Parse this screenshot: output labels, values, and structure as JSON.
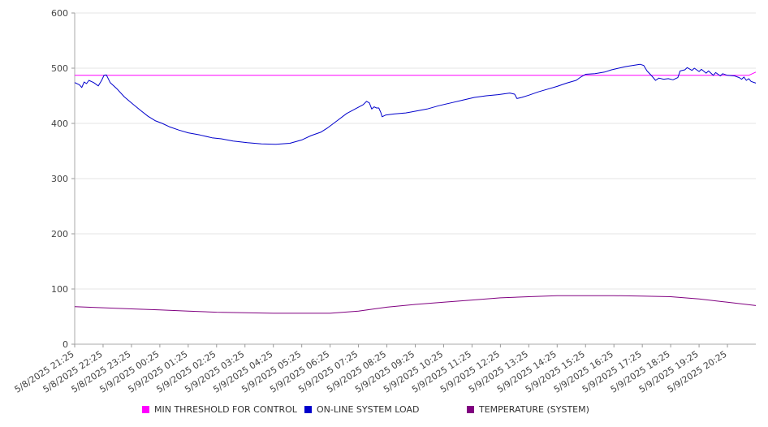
{
  "chart_data": {
    "type": "line",
    "ylim": [
      0,
      600
    ],
    "yticks": [
      0,
      100,
      200,
      300,
      400,
      500,
      600
    ],
    "grid": true,
    "legend_position": "bottom",
    "x_tick_labels": [
      "5/8/2025 21:25",
      "5/8/2025 22:25",
      "5/8/2025 23:25",
      "5/9/2025 00:25",
      "5/9/2025 01:25",
      "5/9/2025 02:25",
      "5/9/2025 03:25",
      "5/9/2025 04:25",
      "5/9/2025 05:25",
      "5/9/2025 06:25",
      "5/9/2025 07:25",
      "5/9/2025 08:25",
      "5/9/2025 09:25",
      "5/9/2025 10:25",
      "5/9/2025 11:25",
      "5/9/2025 12:25",
      "5/9/2025 13:25",
      "5/9/2025 14:25",
      "5/9/2025 15:25",
      "5/9/2025 16:25",
      "5/9/2025 17:25",
      "5/9/2025 18:25",
      "5/9/2025 19:25",
      "5/9/2025 20:25"
    ],
    "series": [
      {
        "name": "MIN THRESHOLD FOR CONTROL",
        "color": "#ff00ff",
        "points": [
          [
            "5/8/2025 21:25",
            487
          ],
          [
            "5/9/2025 21:10",
            487
          ],
          [
            "5/9/2025 21:25",
            493
          ]
        ]
      },
      {
        "name": "ON-LINE SYSTEM LOAD",
        "color": "#0000cc",
        "points": [
          [
            "5/8/2025 21:25",
            474
          ],
          [
            "5/8/2025 21:35",
            470
          ],
          [
            "5/8/2025 21:40",
            465
          ],
          [
            "5/8/2025 21:45",
            475
          ],
          [
            "5/8/2025 21:50",
            472
          ],
          [
            "5/8/2025 21:55",
            478
          ],
          [
            "5/8/2025 22:05",
            474
          ],
          [
            "5/8/2025 22:15",
            468
          ],
          [
            "5/8/2025 22:22",
            478
          ],
          [
            "5/8/2025 22:27",
            487
          ],
          [
            "5/8/2025 22:32",
            488
          ],
          [
            "5/8/2025 22:40",
            474
          ],
          [
            "5/8/2025 22:55",
            462
          ],
          [
            "5/8/2025 23:10",
            448
          ],
          [
            "5/8/2025 23:25",
            437
          ],
          [
            "5/8/2025 23:45",
            423
          ],
          [
            "5/9/2025 00:00",
            413
          ],
          [
            "5/9/2025 00:15",
            405
          ],
          [
            "5/9/2025 00:30",
            400
          ],
          [
            "5/9/2025 00:45",
            394
          ],
          [
            "5/9/2025 01:05",
            388
          ],
          [
            "5/9/2025 01:25",
            383
          ],
          [
            "5/9/2025 01:50",
            379
          ],
          [
            "5/9/2025 02:15",
            374
          ],
          [
            "5/9/2025 02:35",
            372
          ],
          [
            "5/9/2025 03:00",
            368
          ],
          [
            "5/9/2025 03:30",
            365
          ],
          [
            "5/9/2025 04:00",
            363
          ],
          [
            "5/9/2025 04:30",
            362
          ],
          [
            "5/9/2025 05:00",
            364
          ],
          [
            "5/9/2025 05:25",
            370
          ],
          [
            "5/9/2025 05:45",
            378
          ],
          [
            "5/9/2025 06:05",
            384
          ],
          [
            "5/9/2025 06:20",
            392
          ],
          [
            "5/9/2025 06:40",
            405
          ],
          [
            "5/9/2025 07:00",
            418
          ],
          [
            "5/9/2025 07:20",
            427
          ],
          [
            "5/9/2025 07:35",
            434
          ],
          [
            "5/9/2025 07:42",
            440
          ],
          [
            "5/9/2025 07:48",
            437
          ],
          [
            "5/9/2025 07:53",
            426
          ],
          [
            "5/9/2025 07:58",
            430
          ],
          [
            "5/9/2025 08:03",
            428
          ],
          [
            "5/9/2025 08:08",
            428
          ],
          [
            "5/9/2025 08:12",
            420
          ],
          [
            "5/9/2025 08:15",
            412
          ],
          [
            "5/9/2025 08:22",
            415
          ],
          [
            "5/9/2025 08:40",
            417
          ],
          [
            "5/9/2025 09:05",
            419
          ],
          [
            "5/9/2025 09:25",
            422
          ],
          [
            "5/9/2025 09:50",
            426
          ],
          [
            "5/9/2025 10:15",
            432
          ],
          [
            "5/9/2025 10:40",
            437
          ],
          [
            "5/9/2025 11:05",
            442
          ],
          [
            "5/9/2025 11:30",
            447
          ],
          [
            "5/9/2025 11:55",
            450
          ],
          [
            "5/9/2025 12:20",
            452
          ],
          [
            "5/9/2025 12:45",
            455
          ],
          [
            "5/9/2025 12:55",
            453
          ],
          [
            "5/9/2025 13:00",
            445
          ],
          [
            "5/9/2025 13:10",
            447
          ],
          [
            "5/9/2025 13:25",
            451
          ],
          [
            "5/9/2025 13:45",
            457
          ],
          [
            "5/9/2025 14:05",
            462
          ],
          [
            "5/9/2025 14:25",
            467
          ],
          [
            "5/9/2025 14:45",
            473
          ],
          [
            "5/9/2025 15:05",
            478
          ],
          [
            "5/9/2025 15:15",
            484
          ],
          [
            "5/9/2025 15:25",
            489
          ],
          [
            "5/9/2025 15:45",
            490
          ],
          [
            "5/9/2025 16:05",
            493
          ],
          [
            "5/9/2025 16:20",
            497
          ],
          [
            "5/9/2025 16:35",
            500
          ],
          [
            "5/9/2025 16:50",
            503
          ],
          [
            "5/9/2025 17:05",
            505
          ],
          [
            "5/9/2025 17:20",
            507
          ],
          [
            "5/9/2025 17:28",
            505
          ],
          [
            "5/9/2025 17:35",
            495
          ],
          [
            "5/9/2025 17:45",
            486
          ],
          [
            "5/9/2025 17:53",
            478
          ],
          [
            "5/9/2025 18:00",
            482
          ],
          [
            "5/9/2025 18:10",
            480
          ],
          [
            "5/9/2025 18:20",
            481
          ],
          [
            "5/9/2025 18:30",
            479
          ],
          [
            "5/9/2025 18:40",
            483
          ],
          [
            "5/9/2025 18:45",
            495
          ],
          [
            "5/9/2025 18:55",
            497
          ],
          [
            "5/9/2025 19:00",
            501
          ],
          [
            "5/9/2025 19:10",
            496
          ],
          [
            "5/9/2025 19:15",
            500
          ],
          [
            "5/9/2025 19:25",
            494
          ],
          [
            "5/9/2025 19:30",
            498
          ],
          [
            "5/9/2025 19:40",
            491
          ],
          [
            "5/9/2025 19:45",
            495
          ],
          [
            "5/9/2025 19:55",
            487
          ],
          [
            "5/9/2025 20:00",
            492
          ],
          [
            "5/9/2025 20:10",
            486
          ],
          [
            "5/9/2025 20:15",
            490
          ],
          [
            "5/9/2025 20:25",
            487
          ],
          [
            "5/9/2025 20:40",
            486
          ],
          [
            "5/9/2025 20:50",
            483
          ],
          [
            "5/9/2025 20:55",
            480
          ],
          [
            "5/9/2025 21:00",
            484
          ],
          [
            "5/9/2025 21:05",
            478
          ],
          [
            "5/9/2025 21:10",
            481
          ],
          [
            "5/9/2025 21:15",
            476
          ],
          [
            "5/9/2025 21:25",
            473
          ]
        ]
      },
      {
        "name": "TEMPERATURE (SYSTEM)",
        "color": "#800080",
        "points": [
          [
            "5/8/2025 21:25",
            68
          ],
          [
            "5/8/2025 22:25",
            66
          ],
          [
            "5/8/2025 23:25",
            64
          ],
          [
            "5/9/2025 00:25",
            62
          ],
          [
            "5/9/2025 01:25",
            60
          ],
          [
            "5/9/2025 02:25",
            58
          ],
          [
            "5/9/2025 03:25",
            57
          ],
          [
            "5/9/2025 04:25",
            56
          ],
          [
            "5/9/2025 05:25",
            56
          ],
          [
            "5/9/2025 06:25",
            56
          ],
          [
            "5/9/2025 07:25",
            60
          ],
          [
            "5/9/2025 08:25",
            67
          ],
          [
            "5/9/2025 09:25",
            72
          ],
          [
            "5/9/2025 10:25",
            76
          ],
          [
            "5/9/2025 11:25",
            80
          ],
          [
            "5/9/2025 12:25",
            84
          ],
          [
            "5/9/2025 13:25",
            86
          ],
          [
            "5/9/2025 14:25",
            88
          ],
          [
            "5/9/2025 15:25",
            88
          ],
          [
            "5/9/2025 16:25",
            88
          ],
          [
            "5/9/2025 17:25",
            87
          ],
          [
            "5/9/2025 18:25",
            86
          ],
          [
            "5/9/2025 19:25",
            82
          ],
          [
            "5/9/2025 20:25",
            76
          ],
          [
            "5/9/2025 21:25",
            70
          ]
        ]
      }
    ]
  }
}
